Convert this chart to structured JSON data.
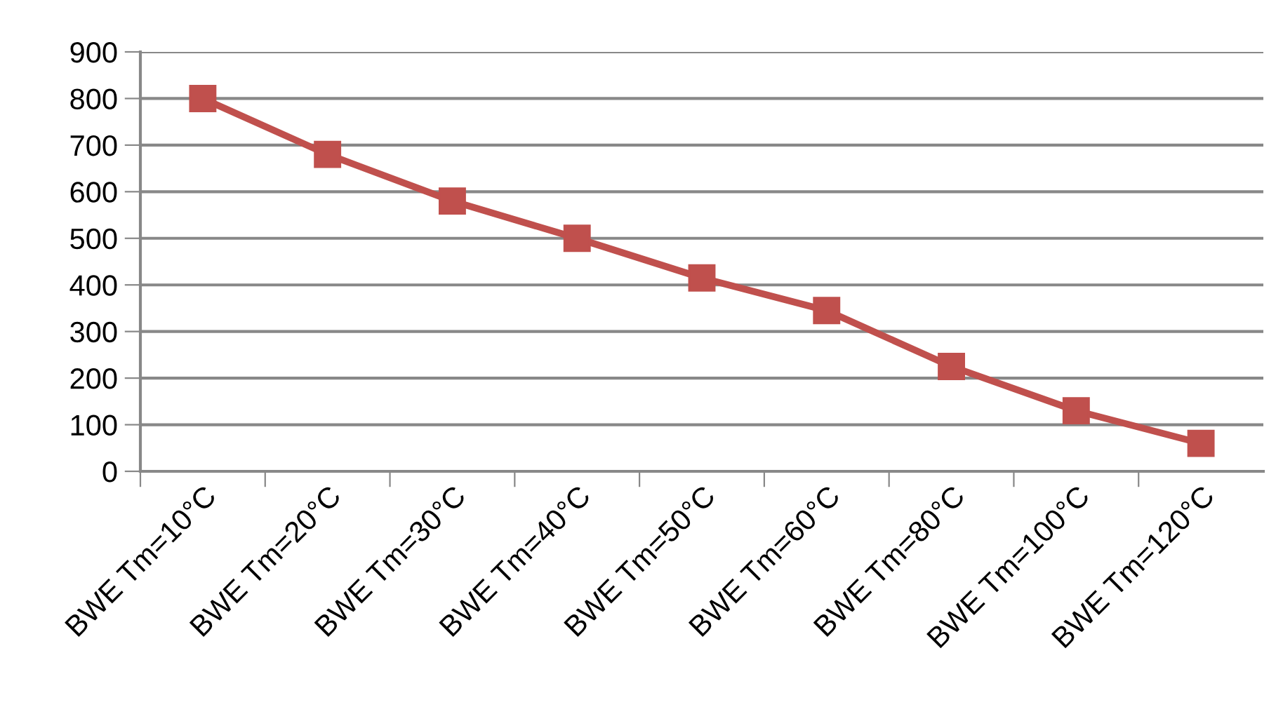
{
  "chart_data": {
    "type": "line",
    "categories": [
      "BWE Tm=10°C",
      "BWE Tm=20°C",
      "BWE Tm=30°C",
      "BWE Tm=40°C",
      "BWE Tm=50°C",
      "BWE Tm=60°C",
      "BWE Tm=80°C",
      "BWE Tm=100°C",
      "BWE Tm=120°C"
    ],
    "series": [
      {
        "color": "#c0504d",
        "values": [
          800,
          680,
          580,
          500,
          415,
          345,
          225,
          130,
          60
        ]
      }
    ],
    "ylim": [
      0,
      900
    ],
    "yticks": [
      0,
      100,
      200,
      300,
      400,
      500,
      600,
      700,
      800,
      900
    ],
    "grid": "y",
    "marker": "square",
    "line_style": "solid"
  }
}
